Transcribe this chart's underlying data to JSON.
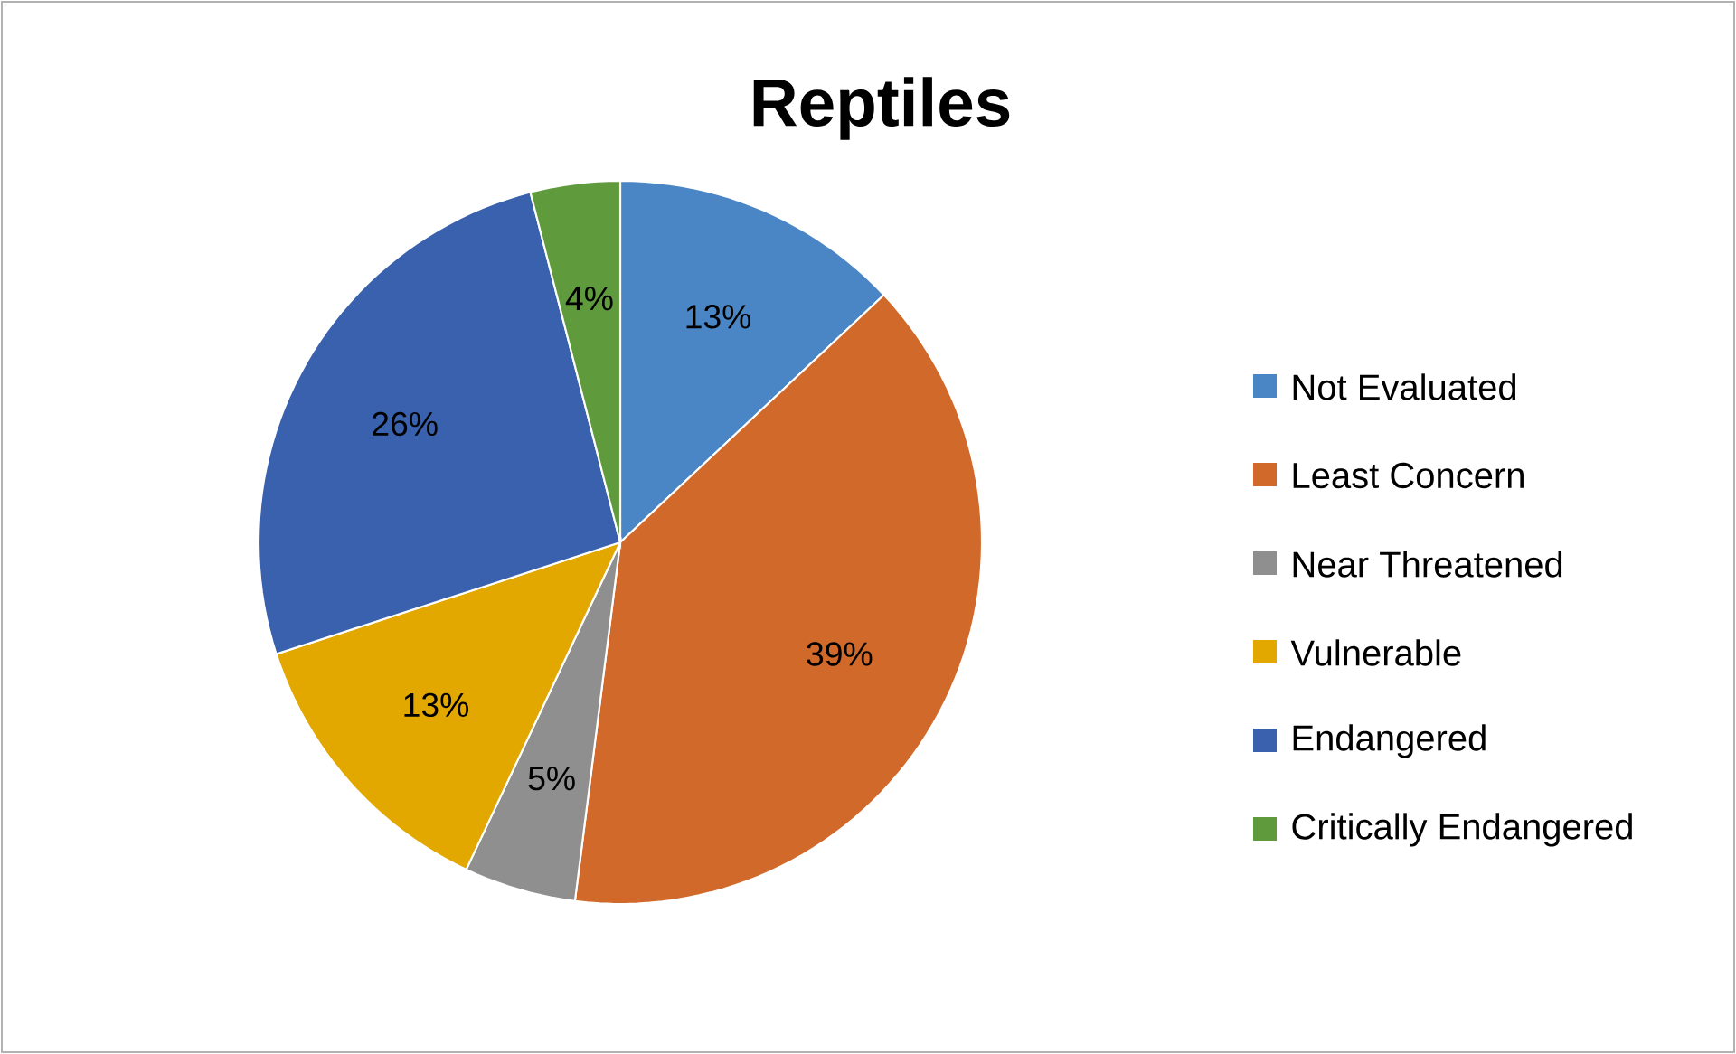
{
  "chart_data": {
    "type": "pie",
    "title": "Reptiles",
    "categories": [
      "Not Evaluated",
      "Least Concern",
      "Near Threatened",
      "Vulnerable",
      "Endangered",
      "Critically Endangered"
    ],
    "values": [
      13,
      39,
      5,
      13,
      26,
      4
    ],
    "value_labels": [
      "13%",
      "39%",
      "5%",
      "13%",
      "26%",
      "4%"
    ],
    "colors": [
      "#4a86c5",
      "#d0692a",
      "#8f8f8f",
      "#e2a800",
      "#3a61ad",
      "#5f9a3c"
    ],
    "legend": "right"
  }
}
